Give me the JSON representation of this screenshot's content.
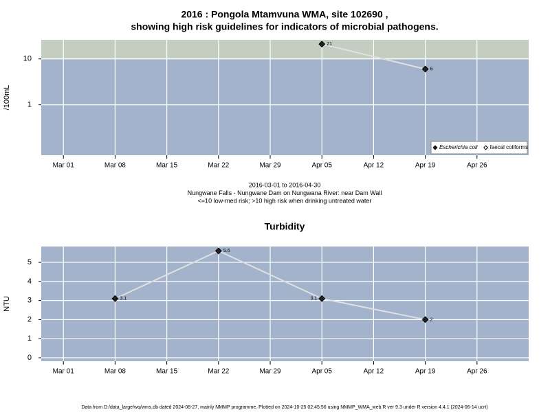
{
  "chart_data": [
    {
      "type": "line",
      "title": "2016 : Pongola Mtamvuna WMA, site 102690 ,",
      "subtitle": "showing high risk guidelines for indicators of microbial pathogens.",
      "y_label": "/100mL",
      "x": [
        "Apr 05",
        "Apr 19"
      ],
      "series": [
        {
          "name": "Escherichia coli",
          "color": "#222222",
          "values": [
            21,
            6
          ]
        },
        {
          "name": "faecal coliforms",
          "color": "#ffffff",
          "values": [
            null,
            null
          ]
        }
      ],
      "log_y": true,
      "ylim": [
        0.08,
        26
      ],
      "yticks": [
        1,
        10
      ],
      "threshold": 10,
      "xlim": [
        "Feb 27",
        "May 03"
      ],
      "xticks": [
        "Mar 01",
        "Mar 08",
        "Mar 15",
        "Mar 22",
        "Mar 29",
        "Apr 05",
        "Apr 12",
        "Apr 19",
        "Apr 26"
      ],
      "grid": true,
      "legend": "bottom-right",
      "captions": [
        "2016-03-01 to 2016-04-30",
        "Nungwane Falls - Nungwane Dam on Nungwana River: near Dam Wall",
        "<=10 low-med risk; >10 high risk when drinking untreated water"
      ]
    },
    {
      "type": "line",
      "title": "Turbidity",
      "y_label": "NTU",
      "x": [
        "Mar 08",
        "Mar 22",
        "Apr 05",
        "Apr 19"
      ],
      "series": [
        {
          "name": "Turbidity",
          "color": "#222222",
          "values": [
            3.1,
            5.6,
            3.1,
            2
          ]
        }
      ],
      "log_y": false,
      "ylim": [
        -0.18,
        5.83
      ],
      "yticks": [
        0,
        1,
        2,
        3,
        4,
        5
      ],
      "xlim": [
        "Feb 27",
        "May 03"
      ],
      "xticks": [
        "Mar 01",
        "Mar 08",
        "Mar 15",
        "Mar 22",
        "Mar 29",
        "Apr 05",
        "Apr 12",
        "Apr 19",
        "Apr 26"
      ],
      "grid": true
    }
  ],
  "footer": "Data from D:/data_large/wq/wms.db dated 2024-08-27, mainly NMMP programme. Plotted on 2024-10-25 02:45:56 using NMMP_WMA_web.R ver 9.3 under R version 4.4.1 (2024-06-14 ucrt)"
}
